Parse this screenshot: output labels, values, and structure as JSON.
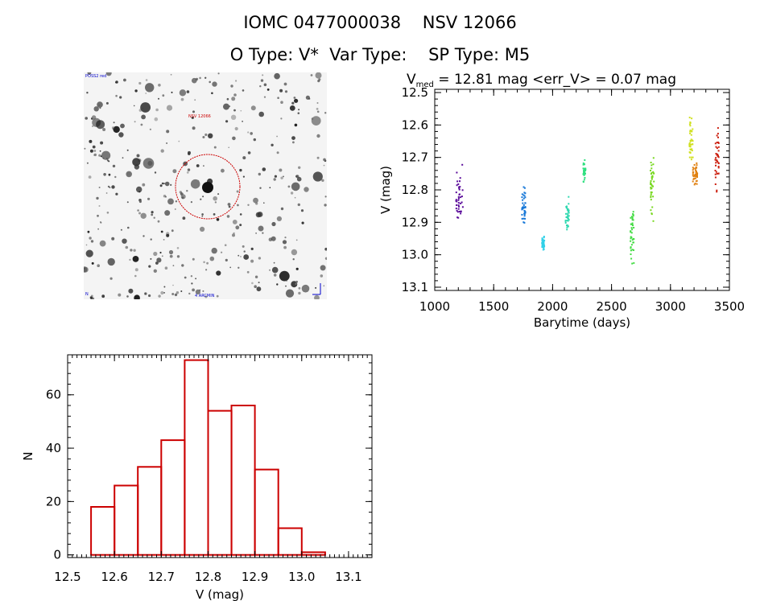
{
  "header": {
    "title_line1": "IOMC 0477000038    NSV 12066",
    "title_line2": "O Type: V*  Var Type:    SP Type: M5"
  },
  "finder": {
    "top_left_label": "POSS2 red",
    "object_label": "NSV 12066",
    "bottom_left_label": "N",
    "bottom_center_label": "4 ARCMIN",
    "circle_color": "#cc0000"
  },
  "chart_data": [
    {
      "type": "scatter",
      "title_main": "V",
      "title_sub": "med",
      "title_rest": " = 12.81 mag <err_V> = 0.07 mag",
      "xlabel": "Barytime (days)",
      "ylabel": "V (mag)",
      "xlim": [
        1000,
        3500
      ],
      "ylim": [
        13.11,
        12.49
      ],
      "y_inverted": true,
      "xticks": [
        1000,
        1500,
        2000,
        2500,
        3000,
        3500
      ],
      "yticks": [
        "12.5",
        "12.6",
        "12.7",
        "12.8",
        "12.9",
        "13.0",
        "13.1"
      ],
      "series": [
        {
          "color": "#5a0b9a",
          "x_range": [
            1180,
            1240
          ],
          "y_range": [
            12.7,
            12.94
          ]
        },
        {
          "color": "#1878d8",
          "x_range": [
            1740,
            1770
          ],
          "y_range": [
            12.77,
            12.93
          ]
        },
        {
          "color": "#30d0e8",
          "x_range": [
            1910,
            1930
          ],
          "y_range": [
            12.93,
            13.0
          ]
        },
        {
          "color": "#30d8b0",
          "x_range": [
            2110,
            2140
          ],
          "y_range": [
            12.8,
            12.96
          ]
        },
        {
          "color": "#30e080",
          "x_range": [
            2260,
            2280
          ],
          "y_range": [
            12.7,
            12.79
          ]
        },
        {
          "color": "#44dc44",
          "x_range": [
            2660,
            2690
          ],
          "y_range": [
            12.83,
            13.05
          ]
        },
        {
          "color": "#78d820",
          "x_range": [
            2830,
            2860
          ],
          "y_range": [
            12.65,
            12.93
          ]
        },
        {
          "color": "#d0e020",
          "x_range": [
            3160,
            3190
          ],
          "y_range": [
            12.55,
            12.74
          ]
        },
        {
          "color": "#e08010",
          "x_range": [
            3190,
            3230
          ],
          "y_range": [
            12.7,
            12.8
          ]
        },
        {
          "color": "#cc2010",
          "x_range": [
            3380,
            3410
          ],
          "y_range": [
            12.57,
            12.85
          ]
        }
      ]
    },
    {
      "type": "bar",
      "xlabel": "V (mag)",
      "ylabel": "N",
      "xlim": [
        12.5,
        13.15
      ],
      "ylim": [
        -1,
        75
      ],
      "xticks": [
        "12.5",
        "12.6",
        "12.7",
        "12.8",
        "12.9",
        "13.0",
        "13.1"
      ],
      "yticks": [
        "0",
        "20",
        "40",
        "60"
      ],
      "bin_edges": [
        12.55,
        12.6,
        12.65,
        12.7,
        12.75,
        12.8,
        12.85,
        12.9,
        12.95,
        13.0,
        13.05
      ],
      "values": [
        18,
        26,
        33,
        43,
        73,
        54,
        56,
        32,
        10,
        1
      ],
      "color": "#cc0000"
    }
  ]
}
